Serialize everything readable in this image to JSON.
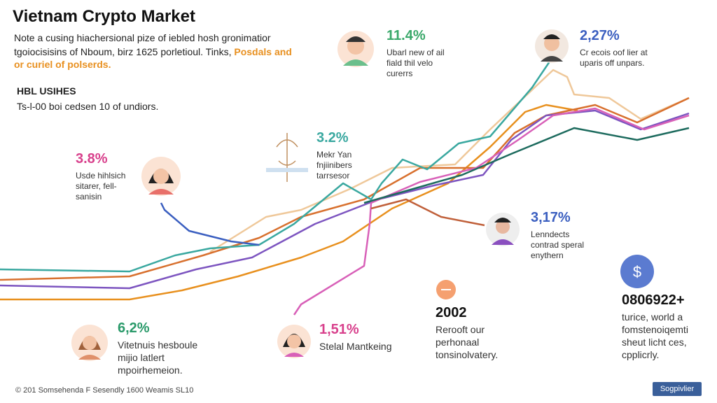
{
  "header": {
    "title": "Vietnam Crypto Market",
    "note": [
      "Note a cusing hiachersional pize of iebled hosh gronimatior",
      "tgoiocisisins of Nboum, birz 1625 porletioul. Tinks,"
    ],
    "highlight": [
      "Posdals and",
      "or curiel of polserds."
    ]
  },
  "section": {
    "heading": "HBL USIHES",
    "text": "Ts-l-00 boi cedsen 10 of undiors."
  },
  "callouts": [
    {
      "value": "11.4%",
      "text": [
        "Ubarl new of ail",
        "fiald thil velo",
        "curerrs"
      ]
    },
    {
      "value": "2,27%",
      "text": [
        "Cr ecois oof lier at",
        "uparis off unpars."
      ]
    },
    {
      "value": "3.8%",
      "text": [
        "Usde hihlsich",
        "sitarer, fell-",
        "sanisin"
      ]
    },
    {
      "value": "3.2%",
      "text": [
        "Mekr Yan",
        "fnjiinibers",
        "tarrsesor"
      ]
    },
    {
      "value": "3,17%",
      "text": [
        "Lenndects",
        "contrad speral",
        "enythern"
      ]
    },
    {
      "value": "2002",
      "text": [
        "Rerooft our",
        "perhonaal",
        "tonsinolvatery."
      ]
    },
    {
      "value": "0806922+",
      "text": [
        "turice, world a",
        "fomstenoiqemti",
        "sheut licht ces,",
        "cpplicrly."
      ]
    },
    {
      "value": "6,2%",
      "text": [
        "Vitetnuis hesboule",
        "mijio latlert",
        "mpoirhemeion."
      ]
    },
    {
      "value": "1,51%",
      "text": [
        "Stelal Mantkeing"
      ]
    }
  ],
  "footer": "© 201 Somsehenda F Sesendly 1600 Weamis SL10",
  "button": "Sogpivlier"
}
